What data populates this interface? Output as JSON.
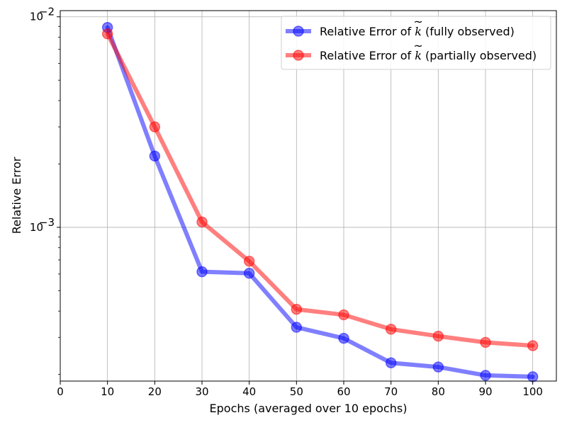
{
  "chart_data": {
    "type": "line",
    "title": "",
    "xlabel": "Epochs (averaged over 10 epochs)",
    "ylabel": "Relative Error",
    "yscale": "log",
    "xlim": [
      0,
      105
    ],
    "ylim": [
      0.000186,
      0.0107
    ],
    "grid": true,
    "legend_position": "top-right",
    "x_ticks": [
      0,
      10,
      20,
      30,
      40,
      50,
      60,
      70,
      80,
      90,
      100
    ],
    "x_tick_labels": [
      "0",
      "10",
      "20",
      "30",
      "40",
      "50",
      "60",
      "70",
      "80",
      "90",
      "100"
    ],
    "y_ticks": [
      0.001,
      0.01
    ],
    "y_tick_labels": [
      {
        "base": "10",
        "exp": "−3"
      },
      {
        "base": "10",
        "exp": "−2"
      }
    ],
    "x": [
      10,
      20,
      30,
      40,
      50,
      60,
      70,
      80,
      90,
      100
    ],
    "series": [
      {
        "name": "fully observed",
        "legend_prefix": "Relative Error of",
        "legend_symbol": "k",
        "legend_suffix": "(fully observed)",
        "color": "#0000ff",
        "values": [
          0.0089,
          0.00218,
          0.000615,
          0.000605,
          0.000335,
          0.000297,
          0.000227,
          0.000217,
          0.000198,
          0.000195
        ]
      },
      {
        "name": "partially observed",
        "legend_prefix": "Relative Error of",
        "legend_symbol": "k",
        "legend_suffix": "(partially observed)",
        "color": "#ff0000",
        "values": [
          0.0083,
          0.003,
          0.00106,
          0.00069,
          0.000408,
          0.000384,
          0.000328,
          0.000304,
          0.000284,
          0.000274
        ]
      }
    ]
  }
}
